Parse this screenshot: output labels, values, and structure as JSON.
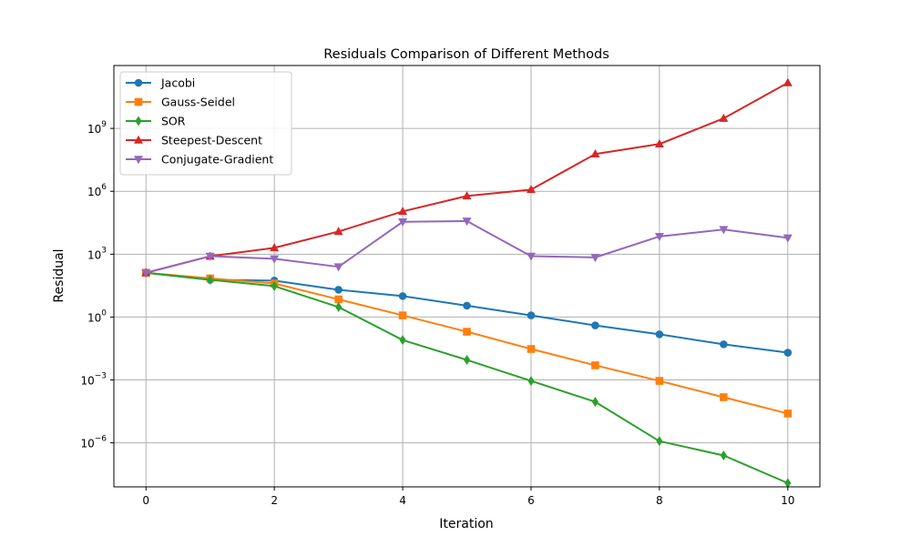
{
  "chart_data": {
    "type": "line",
    "title": "Residuals Comparison of Different Methods",
    "xlabel": "Iteration",
    "ylabel": "Residual",
    "xlim": [
      -0.5,
      10.5
    ],
    "ylim_log10": [
      -8.1,
      12.0
    ],
    "yscale": "log",
    "grid": true,
    "legend_position": "top-left",
    "x": [
      0,
      1,
      2,
      3,
      4,
      5,
      6,
      7,
      8,
      9,
      10
    ],
    "x_ticks": [
      0,
      2,
      4,
      6,
      8,
      10
    ],
    "y_ticks": [
      {
        "base": "10",
        "exp": "−6",
        "log10": -6
      },
      {
        "base": "10",
        "exp": "−3",
        "log10": -3
      },
      {
        "base": "10",
        "exp": "0",
        "log10": 0
      },
      {
        "base": "10",
        "exp": "3",
        "log10": 3
      },
      {
        "base": "10",
        "exp": "6",
        "log10": 6
      },
      {
        "base": "10",
        "exp": "9",
        "log10": 9
      }
    ],
    "series": [
      {
        "name": "Jacobi",
        "color": "#1f77b4",
        "marker": "circle",
        "values": [
          130,
          60,
          55,
          20,
          10,
          3.5,
          1.2,
          0.4,
          0.15,
          0.05,
          0.02
        ]
      },
      {
        "name": "Gauss-Seidel",
        "color": "#ff7f0e",
        "marker": "square",
        "values": [
          130,
          70,
          40,
          7,
          1.2,
          0.2,
          0.03,
          0.005,
          0.0009,
          0.00015,
          2.5e-05
        ]
      },
      {
        "name": "SOR",
        "color": "#2ca02c",
        "marker": "diamond",
        "values": [
          130,
          60,
          30,
          3,
          0.08,
          0.009,
          0.0009,
          9e-05,
          1.2e-06,
          2.5e-07,
          1.2e-08
        ]
      },
      {
        "name": "Steepest-Descent",
        "color": "#d62728",
        "marker": "triangle-up",
        "values": [
          130,
          800,
          2000,
          12000,
          110000,
          600000,
          1200000,
          60000000,
          180000000,
          3000000000,
          150000000000
        ]
      },
      {
        "name": "Conjugate-Gradient",
        "color": "#9467bd",
        "marker": "triangle-down",
        "values": [
          130,
          800,
          600,
          250,
          35000,
          38000,
          800,
          700,
          7000,
          15000,
          6000
        ]
      }
    ]
  }
}
